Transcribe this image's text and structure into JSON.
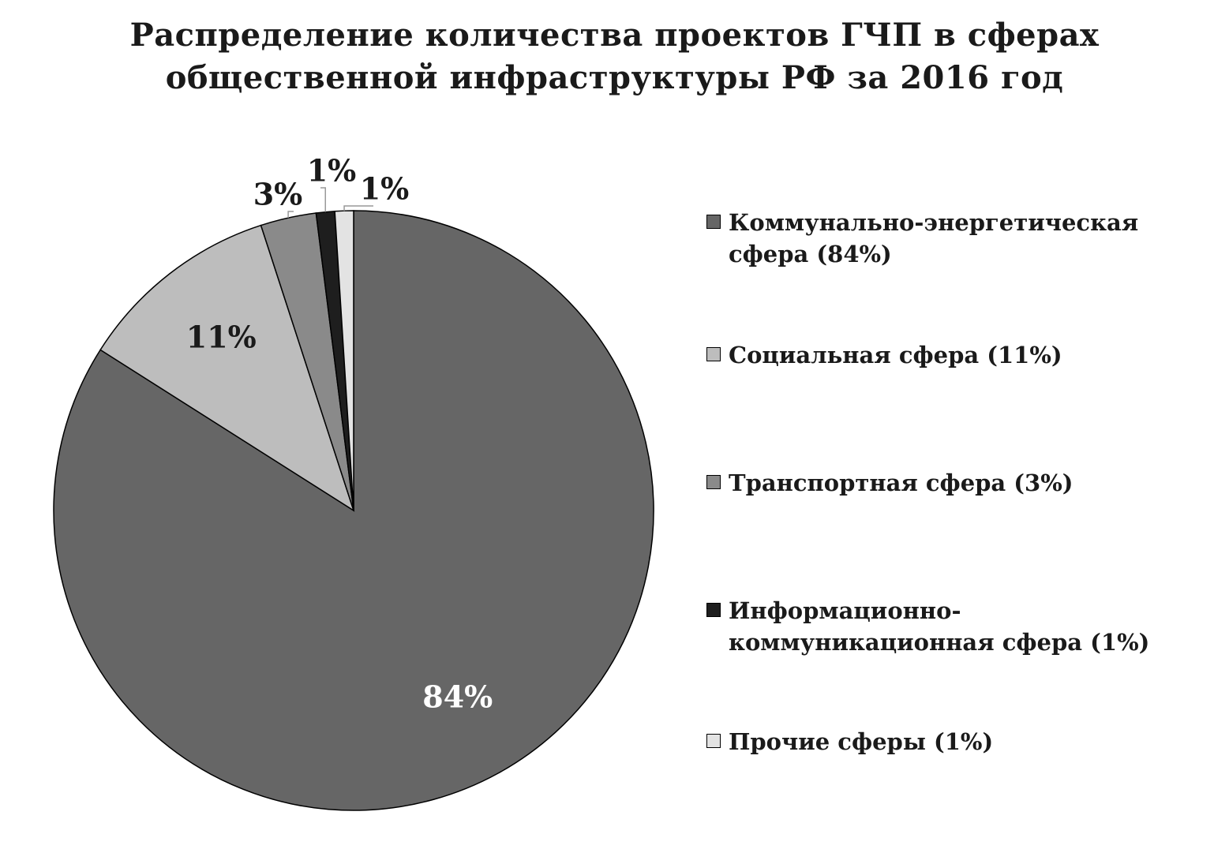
{
  "chart_data": {
    "type": "pie",
    "title_lines": [
      "Распределение количества проектов ГЧП в сферах",
      "общественной инфраструктуры РФ за 2016 год"
    ],
    "slices": [
      {
        "name": "Коммунально-энергетическая сфера",
        "value": 84,
        "label": "84%",
        "legend": "Коммунально-энергетическая\nсфера (84%)",
        "color": "#666666",
        "label_color": "#ffffff"
      },
      {
        "name": "Социальная сфера",
        "value": 11,
        "label": "11%",
        "legend": "Социальная сфера (11%)",
        "color": "#bdbdbd",
        "label_color": "#1a1a1a"
      },
      {
        "name": "Транспортная сфера",
        "value": 3,
        "label": "3%",
        "legend": "Транспортная сфера (3%)",
        "color": "#8a8a8a",
        "label_color": "#1a1a1a"
      },
      {
        "name": "Информационно-коммуникационная сфера",
        "value": 1,
        "label": "1%",
        "legend": "Информационно-\nкоммуникационная сфера (1%)",
        "color": "#1e1e1e",
        "label_color": "#1a1a1a"
      },
      {
        "name": "Прочие сферы",
        "value": 1,
        "label": "1%",
        "legend": "Прочие сферы (1%)",
        "color": "#e3e3e3",
        "label_color": "#1a1a1a"
      }
    ],
    "legend_position": "right",
    "start_angle_deg": 0,
    "direction": "clockwise-from-top, largest slice first"
  }
}
